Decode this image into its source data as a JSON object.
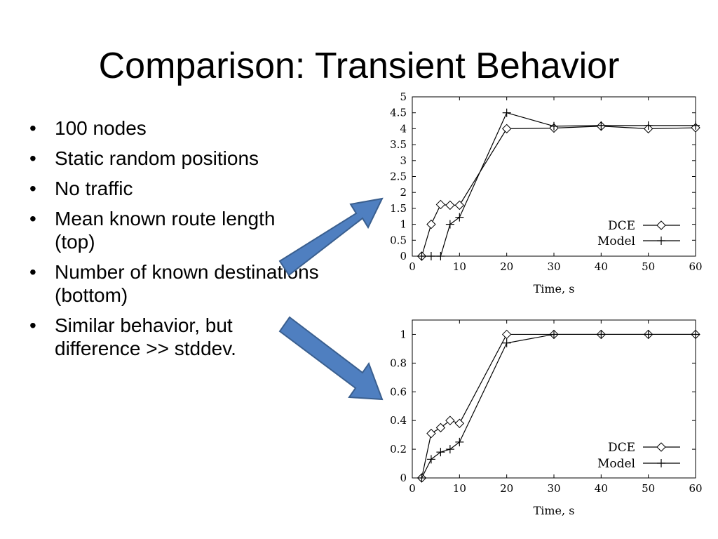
{
  "slide": {
    "title": "Comparison: Transient Behavior",
    "bullets": [
      "100 nodes",
      "Static random positions",
      "No traffic",
      "Mean known route length (top)",
      "Number of known destinations (bottom)",
      "Similar behavior, but difference >> stddev."
    ],
    "arrow_color": "#4f7fc0",
    "arrow_stroke": "#3a5f8f"
  },
  "chart_data": [
    {
      "type": "line",
      "xlabel": "Time, s",
      "ylabel": "",
      "xlim": [
        0,
        60
      ],
      "ylim": [
        0,
        5
      ],
      "xticks": [
        0,
        10,
        20,
        30,
        40,
        50,
        60
      ],
      "yticks": [
        0,
        0.5,
        1,
        1.5,
        2,
        2.5,
        3,
        3.5,
        4,
        4.5,
        5
      ],
      "legend_position": "bottom-right",
      "grid": false,
      "series": [
        {
          "name": "DCE",
          "marker": "diamond",
          "points": [
            [
              2,
              0
            ],
            [
              4,
              1.0
            ],
            [
              6,
              1.62
            ],
            [
              8,
              1.6
            ],
            [
              10,
              1.6
            ],
            [
              20,
              4.0
            ],
            [
              30,
              4.02
            ],
            [
              40,
              4.08
            ],
            [
              50,
              4.0
            ],
            [
              60,
              4.03
            ]
          ]
        },
        {
          "name": "Model",
          "marker": "plus",
          "points": [
            [
              2,
              0
            ],
            [
              4,
              0
            ],
            [
              6,
              0
            ],
            [
              8,
              1.0
            ],
            [
              10,
              1.22
            ],
            [
              20,
              4.5
            ],
            [
              30,
              4.08
            ],
            [
              40,
              4.1
            ],
            [
              50,
              4.1
            ],
            [
              60,
              4.1
            ]
          ]
        }
      ]
    },
    {
      "type": "line",
      "xlabel": "Time, s",
      "ylabel": "",
      "xlim": [
        0,
        60
      ],
      "ylim": [
        0,
        1.1
      ],
      "xticks": [
        0,
        10,
        20,
        30,
        40,
        50,
        60
      ],
      "yticks": [
        0,
        0.2,
        0.4,
        0.6,
        0.8,
        1
      ],
      "legend_position": "bottom-right",
      "grid": false,
      "series": [
        {
          "name": "DCE",
          "marker": "diamond",
          "points": [
            [
              2,
              0
            ],
            [
              4,
              0.31
            ],
            [
              6,
              0.35
            ],
            [
              8,
              0.4
            ],
            [
              10,
              0.38
            ],
            [
              20,
              1.0
            ],
            [
              30,
              1.0
            ],
            [
              40,
              1.0
            ],
            [
              50,
              1.0
            ],
            [
              60,
              1.0
            ]
          ]
        },
        {
          "name": "Model",
          "marker": "plus",
          "points": [
            [
              2,
              0
            ],
            [
              4,
              0.13
            ],
            [
              6,
              0.18
            ],
            [
              8,
              0.2
            ],
            [
              10,
              0.25
            ],
            [
              20,
              0.94
            ],
            [
              30,
              1.0
            ],
            [
              40,
              1.0
            ],
            [
              50,
              1.0
            ],
            [
              60,
              1.0
            ]
          ]
        }
      ]
    }
  ]
}
